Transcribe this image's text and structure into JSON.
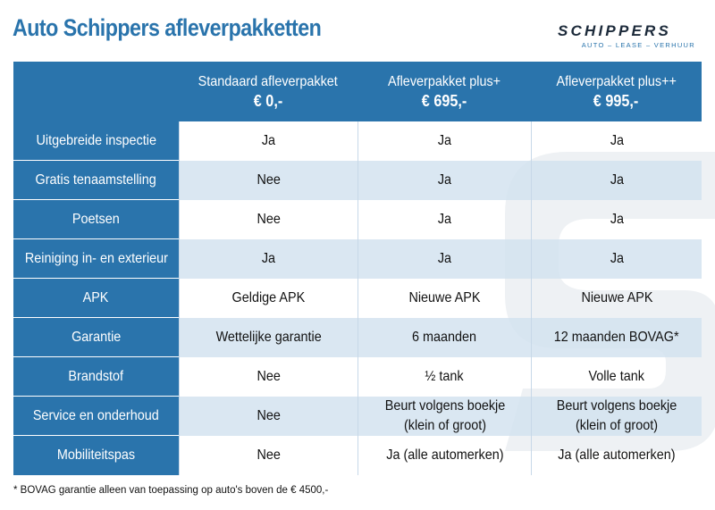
{
  "title": "Auto Schippers afleverpakketten",
  "logo": {
    "name": "SCHIPPERS",
    "tagline": "AUTO – LEASE – VERHUUR"
  },
  "colors": {
    "primary": "#2a74ac",
    "alt_row": "#d2e2ef",
    "watermark": "#eef1f4"
  },
  "plans": [
    {
      "name": "Standaard afleverpakket",
      "price": "€ 0,-"
    },
    {
      "name": "Afleverpakket plus+",
      "price": "€ 695,-"
    },
    {
      "name": "Afleverpakket plus++",
      "price": "€ 995,-"
    }
  ],
  "rows": [
    {
      "label": "Uitgebreide inspectie",
      "values": [
        "Ja",
        "Ja",
        "Ja"
      ]
    },
    {
      "label": "Gratis tenaamstelling",
      "values": [
        "Nee",
        "Ja",
        "Ja"
      ]
    },
    {
      "label": "Poetsen",
      "values": [
        "Nee",
        "Ja",
        "Ja"
      ]
    },
    {
      "label": "Reiniging in- en exterieur",
      "values": [
        "Ja",
        "Ja",
        "Ja"
      ]
    },
    {
      "label": "APK",
      "values": [
        "Geldige APK",
        "Nieuwe APK",
        "Nieuwe APK"
      ]
    },
    {
      "label": "Garantie",
      "values": [
        "Wettelijke garantie",
        "6 maanden",
        "12 maanden BOVAG*"
      ]
    },
    {
      "label": "Brandstof",
      "values": [
        "Nee",
        "½ tank",
        "Volle tank"
      ]
    },
    {
      "label": "Service en onderhoud",
      "values": [
        "Nee",
        "Beurt volgens boekje (klein of groot)",
        "Beurt volgens boekje (klein of groot)"
      ]
    },
    {
      "label": "Mobiliteitspas",
      "values": [
        "Nee",
        "Ja (alle automerken)",
        "Ja (alle automerken)"
      ]
    }
  ],
  "footnote": "* BOVAG garantie alleen van toepassing op auto's boven de € 4500,-"
}
